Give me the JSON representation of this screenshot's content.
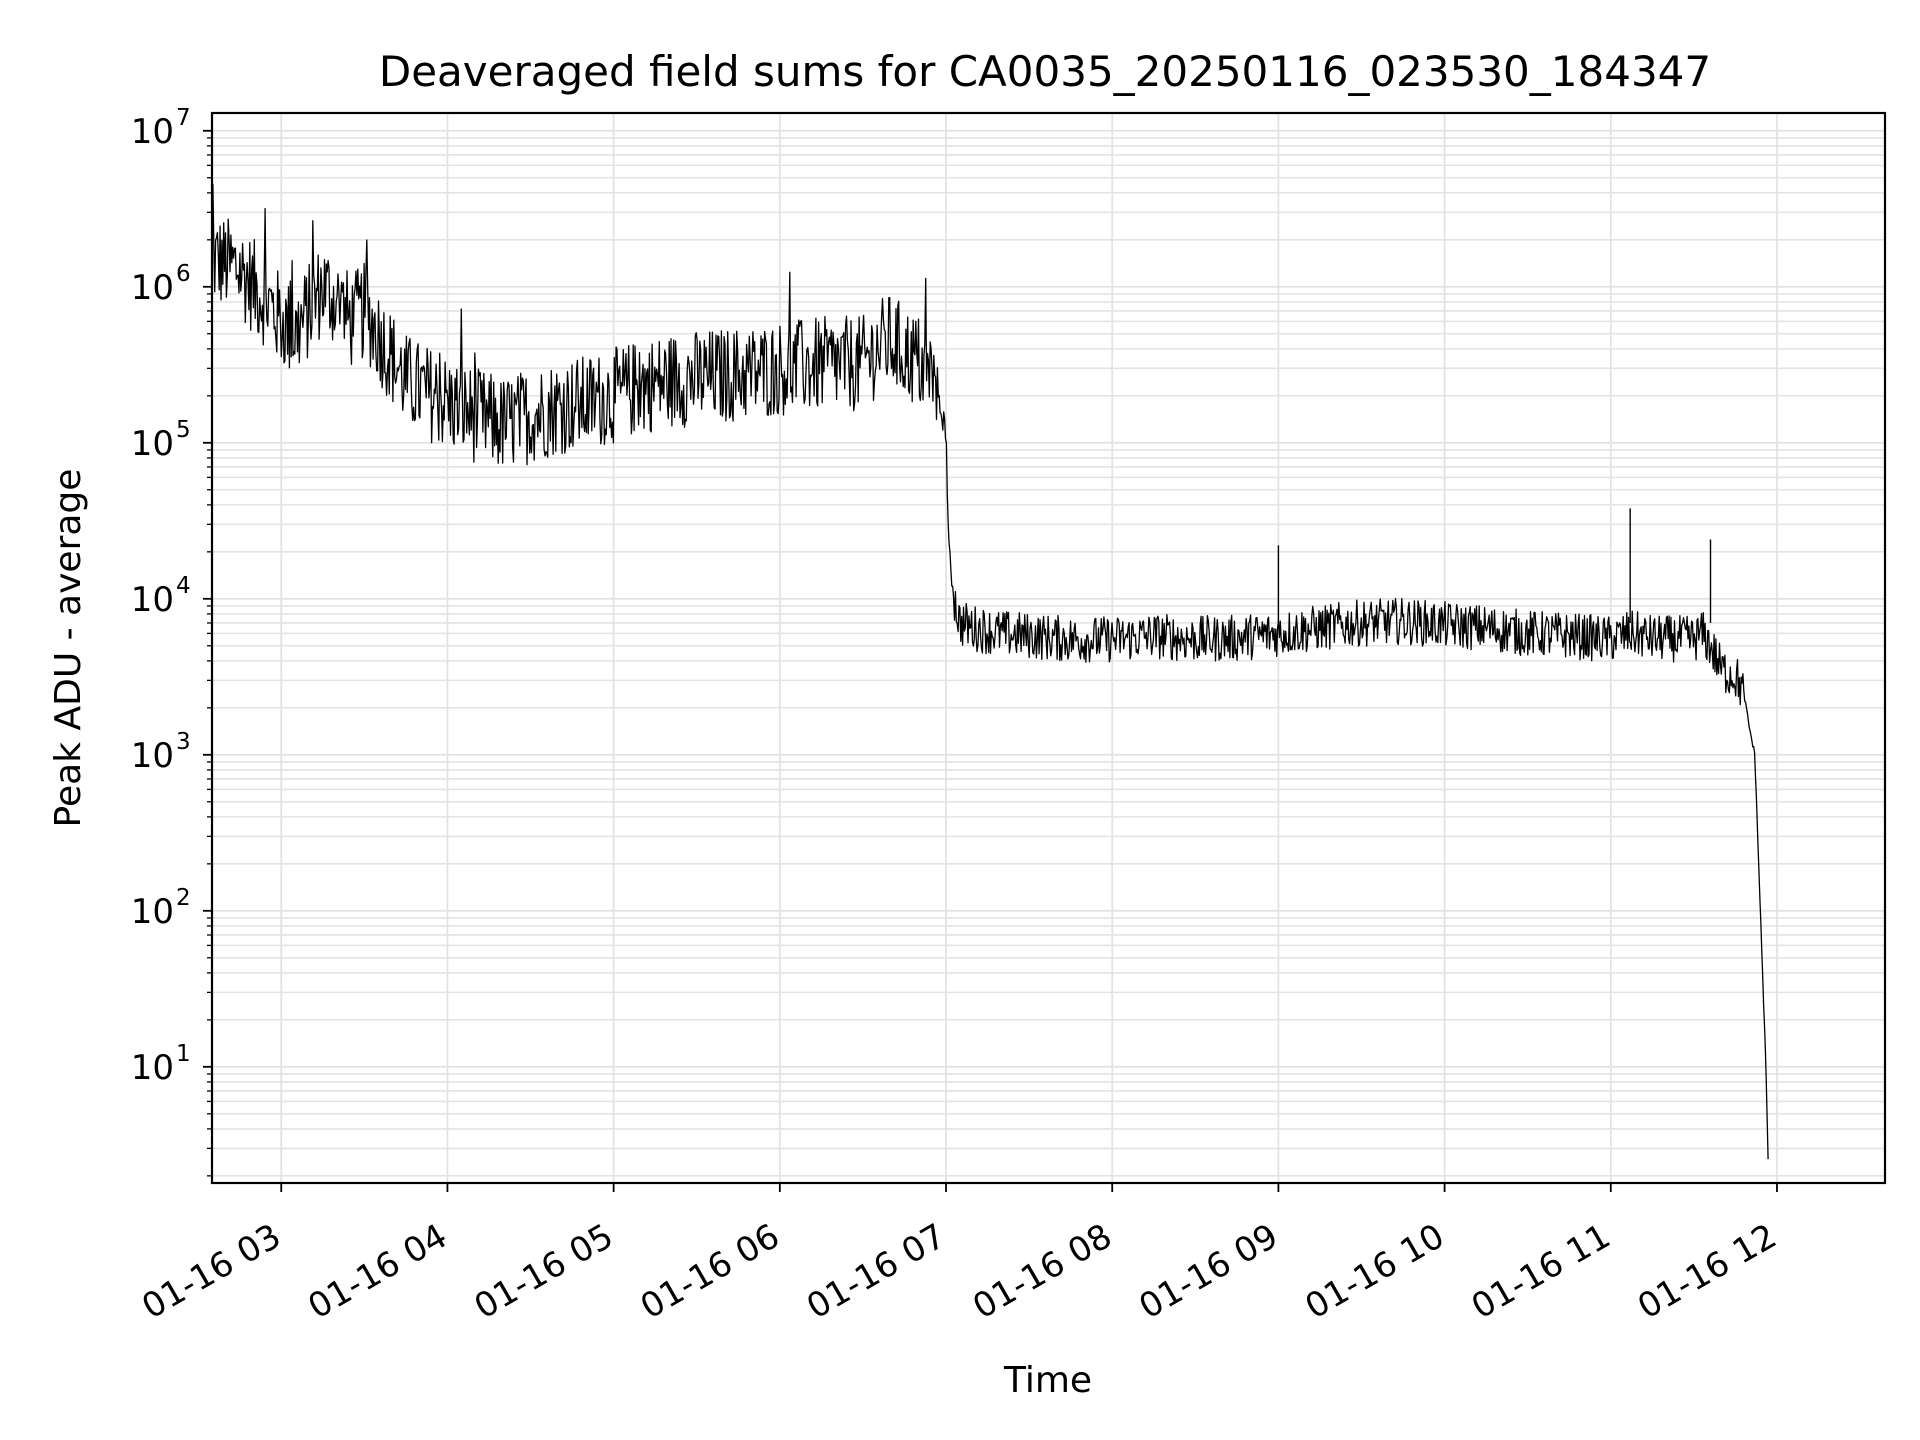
{
  "chart_data": {
    "type": "line",
    "title": "Deaveraged field sums for CA0035_20250116_023530_184347",
    "xlabel": "Time",
    "ylabel": "Peak ADU - average",
    "yscale": "log",
    "grid": true,
    "line_color": "#000000",
    "grid_color": "#e3e3e3",
    "xlim": [
      "2025-01-16 02:35",
      "2025-01-16 12:39"
    ],
    "ylim": [
      1.8,
      13000000
    ],
    "x_tick_labels": [
      "01-16 03",
      "01-16 04",
      "01-16 05",
      "01-16 06",
      "01-16 07",
      "01-16 08",
      "01-16 09",
      "01-16 10",
      "01-16 11",
      "01-16 12"
    ],
    "x_tick_values": [
      "2025-01-16 03:00",
      "2025-01-16 04:00",
      "2025-01-16 05:00",
      "2025-01-16 06:00",
      "2025-01-16 07:00",
      "2025-01-16 08:00",
      "2025-01-16 09:00",
      "2025-01-16 10:00",
      "2025-01-16 11:00",
      "2025-01-16 12:00"
    ],
    "y_ticks": [
      {
        "base": "10",
        "exp": "1",
        "value": 10
      },
      {
        "base": "10",
        "exp": "2",
        "value": 100
      },
      {
        "base": "10",
        "exp": "3",
        "value": 1000
      },
      {
        "base": "10",
        "exp": "4",
        "value": 10000
      },
      {
        "base": "10",
        "exp": "5",
        "value": 100000
      },
      {
        "base": "10",
        "exp": "6",
        "value": 1000000
      },
      {
        "base": "10",
        "exp": "7",
        "value": 10000000
      }
    ],
    "series": [
      {
        "x": [
          "2025-01-16 02:35",
          "2025-01-16 02:40",
          "2025-01-16 02:45",
          "2025-01-16 02:50",
          "2025-01-16 02:55",
          "2025-01-16 03:00",
          "2025-01-16 03:05",
          "2025-01-16 03:10",
          "2025-01-16 03:15",
          "2025-01-16 03:20",
          "2025-01-16 03:25",
          "2025-01-16 03:30",
          "2025-01-16 03:35",
          "2025-01-16 03:40",
          "2025-01-16 03:45",
          "2025-01-16 03:50",
          "2025-01-16 03:55",
          "2025-01-16 04:00",
          "2025-01-16 04:10",
          "2025-01-16 04:20",
          "2025-01-16 04:30",
          "2025-01-16 04:40",
          "2025-01-16 04:50",
          "2025-01-16 05:00",
          "2025-01-16 05:10",
          "2025-01-16 05:20",
          "2025-01-16 05:30",
          "2025-01-16 05:40",
          "2025-01-16 05:50",
          "2025-01-16 06:00",
          "2025-01-16 06:10",
          "2025-01-16 06:20",
          "2025-01-16 06:30",
          "2025-01-16 06:35",
          "2025-01-16 06:40",
          "2025-01-16 06:45",
          "2025-01-16 06:50",
          "2025-01-16 06:55",
          "2025-01-16 07:00",
          "2025-01-16 07:01",
          "2025-01-16 07:03",
          "2025-01-16 07:05",
          "2025-01-16 07:10",
          "2025-01-16 07:20",
          "2025-01-16 07:30",
          "2025-01-16 07:45",
          "2025-01-16 08:00",
          "2025-01-16 08:15",
          "2025-01-16 08:30",
          "2025-01-16 08:45",
          "2025-01-16 09:00",
          "2025-01-16 09:15",
          "2025-01-16 09:30",
          "2025-01-16 09:45",
          "2025-01-16 10:00",
          "2025-01-16 10:15",
          "2025-01-16 10:30",
          "2025-01-16 10:45",
          "2025-01-16 11:00",
          "2025-01-16 11:07",
          "2025-01-16 11:15",
          "2025-01-16 11:30",
          "2025-01-16 11:33",
          "2025-01-16 11:36",
          "2025-01-16 11:40",
          "2025-01-16 11:45",
          "2025-01-16 11:48",
          "2025-01-16 11:50",
          "2025-01-16 11:52",
          "2025-01-16 11:54",
          "2025-01-16 11:56",
          "2025-01-16 11:57"
        ],
        "y": [
          1500000,
          1400000,
          1300000,
          1000000,
          800000,
          600000,
          500000,
          700000,
          1000000,
          800000,
          600000,
          700000,
          500000,
          350000,
          250000,
          220000,
          200000,
          180000,
          150000,
          130000,
          150000,
          170000,
          180000,
          200000,
          230000,
          250000,
          260000,
          270000,
          280000,
          300000,
          310000,
          320000,
          320000,
          400000,
          450000,
          380000,
          330000,
          250000,
          120000,
          20000,
          10000,
          7000,
          6500,
          6000,
          5800,
          5500,
          5500,
          5800,
          5500,
          5600,
          6000,
          6500,
          7000,
          7200,
          6800,
          6500,
          6000,
          5800,
          5500,
          6000,
          5600,
          5500,
          6000,
          5000,
          3500,
          3200,
          2500,
          1500,
          1000,
          100,
          10,
          1.8
        ]
      }
    ]
  }
}
